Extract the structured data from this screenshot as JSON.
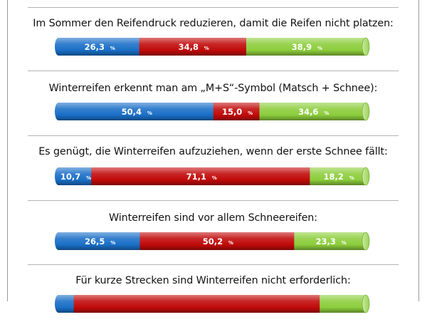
{
  "percent_sign": "%",
  "colors": {
    "ja": "#1a6fc7",
    "nein": "#c10a0a",
    "weiss_nicht": "#8ccd3c"
  },
  "chart_data": {
    "type": "bar",
    "orientation": "horizontal",
    "stacked": true,
    "series": [
      "blue",
      "red",
      "green"
    ],
    "unit": "%",
    "rows": [
      {
        "question": "Im Sommer den Reifendruck reduzieren, damit die Reifen nicht platzen:",
        "values": [
          26.3,
          34.8,
          38.9
        ],
        "labels": [
          "26,3",
          "34,8",
          "38,9"
        ]
      },
      {
        "question": "Winterreifen erkennt man am „M+S“-Symbol (Matsch + Schnee):",
        "values": [
          50.4,
          15.0,
          34.6
        ],
        "labels": [
          "50,4",
          "15,0",
          "34,6"
        ]
      },
      {
        "question": "Es genügt, die Winterreifen aufzuziehen, wenn der erste Schnee fällt:",
        "values": [
          10.7,
          71.1,
          18.2
        ],
        "labels": [
          "10,7",
          "71,1",
          "18,2"
        ]
      },
      {
        "question": "Winterreifen sind vor allem Schneereifen:",
        "values": [
          26.5,
          50.2,
          23.3
        ],
        "labels": [
          "26,5",
          "50,2",
          "23,3"
        ]
      },
      {
        "question": "Für kurze Strecken sind Winterreifen nicht erforderlich:",
        "values": [
          5.0,
          80.0,
          15.0
        ],
        "labels": [
          "",
          "",
          ""
        ]
      }
    ]
  }
}
